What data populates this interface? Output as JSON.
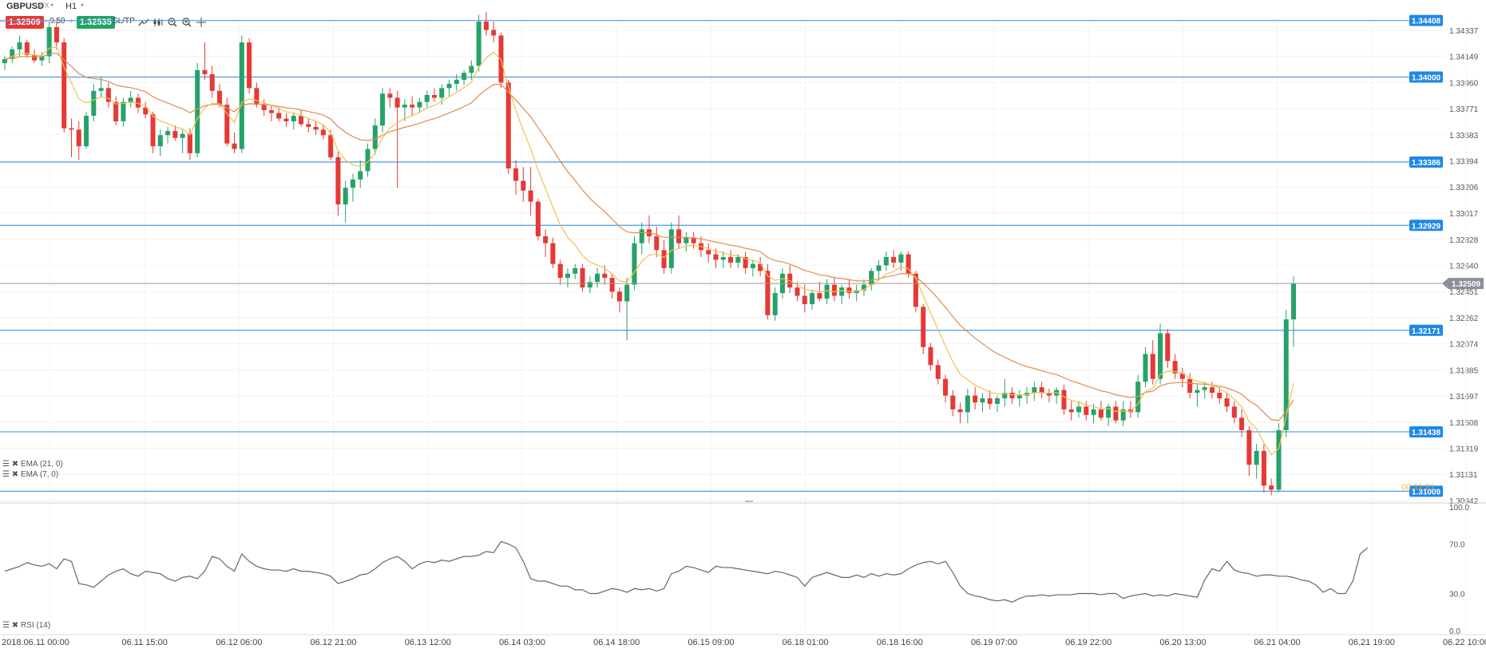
{
  "header": {
    "symbol": "GBPUSD",
    "market": "FX",
    "timeframe": "H1",
    "sell_price": "1.32509",
    "spread": "0.50",
    "buy_price": "1.32535",
    "sltp_label": "SL/TP",
    "colors": {
      "sell": "#e53935",
      "buy": "#26a269"
    }
  },
  "toolbar_icons": [
    "line-chart-icon",
    "candles-icon",
    "zoom-out-icon",
    "zoom-in-icon",
    "crosshair-icon"
  ],
  "price_axis": {
    "ticks": [
      "1.34337",
      "1.34149",
      "1.33960",
      "1.33771",
      "1.33583",
      "1.33394",
      "1.33206",
      "1.33017",
      "1.32828",
      "1.32640",
      "1.32451",
      "1.32262",
      "1.32074",
      "1.31885",
      "1.31697",
      "1.31508",
      "1.31319",
      "1.31131",
      "1.30942"
    ],
    "current_price": "1.32509",
    "overlap_label": "00:11:21"
  },
  "horizontal_lines": [
    "1.34408",
    "1.34000",
    "1.33386",
    "1.32929",
    "1.32171",
    "1.31438",
    "1.31009"
  ],
  "time_axis": [
    "2018.06.11 00:00",
    "06.11 15:00",
    "06.12 06:00",
    "06.12 21:00",
    "06.13 12:00",
    "06.14 03:00",
    "06.14 18:00",
    "06.15 09:00",
    "06.18 01:00",
    "06.18 16:00",
    "06.19 07:00",
    "06.19 22:00",
    "06.20 13:00",
    "06.21 04:00",
    "06.21 19:00",
    "06.22 10:00"
  ],
  "indicators": {
    "ema21_label": "EMA (21, 0)",
    "ema7_label": "EMA (7, 0)",
    "rsi_label": "RSI (14)",
    "ema21_color": "#e08a50",
    "ema7_color": "#f2c14e"
  },
  "rsi_axis": [
    "100.0",
    "70.0",
    "30.0",
    "0.0"
  ],
  "chart_data": {
    "type": "candlestick",
    "candles": [
      [
        1.341,
        1.3415,
        1.3405,
        1.3413
      ],
      [
        1.3413,
        1.3422,
        1.341,
        1.342
      ],
      [
        1.342,
        1.343,
        1.3415,
        1.3425
      ],
      [
        1.3425,
        1.3427,
        1.3414,
        1.3416
      ],
      [
        1.3416,
        1.342,
        1.341,
        1.3412
      ],
      [
        1.3412,
        1.3418,
        1.3408,
        1.3415
      ],
      [
        1.3415,
        1.344,
        1.341,
        1.3436
      ],
      [
        1.3436,
        1.344,
        1.342,
        1.3425
      ],
      [
        1.3425,
        1.3428,
        1.336,
        1.3363
      ],
      [
        1.3363,
        1.337,
        1.3342,
        1.3362
      ],
      [
        1.3362,
        1.3368,
        1.334,
        1.335
      ],
      [
        1.335,
        1.3375,
        1.3348,
        1.3372
      ],
      [
        1.3372,
        1.3395,
        1.3368,
        1.339
      ],
      [
        1.339,
        1.34,
        1.3385,
        1.3392
      ],
      [
        1.3392,
        1.3396,
        1.3378,
        1.3382
      ],
      [
        1.3382,
        1.3386,
        1.3365,
        1.3368
      ],
      [
        1.3368,
        1.3385,
        1.3364,
        1.3382
      ],
      [
        1.3382,
        1.339,
        1.3378,
        1.3385
      ],
      [
        1.3385,
        1.3388,
        1.3374,
        1.3378
      ],
      [
        1.3378,
        1.3382,
        1.337,
        1.3373
      ],
      [
        1.3373,
        1.3375,
        1.3345,
        1.335
      ],
      [
        1.335,
        1.3362,
        1.3343,
        1.3358
      ],
      [
        1.3358,
        1.3364,
        1.3352,
        1.3361
      ],
      [
        1.3361,
        1.3365,
        1.3354,
        1.3356
      ],
      [
        1.3356,
        1.3362,
        1.3345,
        1.3359
      ],
      [
        1.3359,
        1.3363,
        1.334,
        1.3345
      ],
      [
        1.3345,
        1.341,
        1.3342,
        1.3405
      ],
      [
        1.3405,
        1.3425,
        1.3398,
        1.3402
      ],
      [
        1.3402,
        1.3408,
        1.3385,
        1.339
      ],
      [
        1.339,
        1.3395,
        1.3378,
        1.338
      ],
      [
        1.338,
        1.3385,
        1.335,
        1.3352
      ],
      [
        1.3352,
        1.336,
        1.3345,
        1.3348
      ],
      [
        1.3348,
        1.343,
        1.3345,
        1.3425
      ],
      [
        1.3425,
        1.3428,
        1.3388,
        1.3392
      ],
      [
        1.3392,
        1.3396,
        1.3378,
        1.338
      ],
      [
        1.338,
        1.3384,
        1.3372,
        1.3376
      ],
      [
        1.3376,
        1.338,
        1.3368,
        1.3374
      ],
      [
        1.3374,
        1.3378,
        1.3368,
        1.337
      ],
      [
        1.337,
        1.3374,
        1.3364,
        1.3368
      ],
      [
        1.3368,
        1.3374,
        1.3362,
        1.3372
      ],
      [
        1.3372,
        1.3376,
        1.3364,
        1.3366
      ],
      [
        1.3366,
        1.337,
        1.336,
        1.3364
      ],
      [
        1.3364,
        1.3368,
        1.3358,
        1.3362
      ],
      [
        1.3362,
        1.3366,
        1.3355,
        1.3358
      ],
      [
        1.3358,
        1.3362,
        1.334,
        1.3342
      ],
      [
        1.3342,
        1.3346,
        1.33,
        1.3308
      ],
      [
        1.3308,
        1.3325,
        1.3295,
        1.332
      ],
      [
        1.332,
        1.333,
        1.331,
        1.3326
      ],
      [
        1.3326,
        1.334,
        1.332,
        1.3332
      ],
      [
        1.3332,
        1.3352,
        1.3328,
        1.3348
      ],
      [
        1.3348,
        1.337,
        1.3344,
        1.3365
      ],
      [
        1.3365,
        1.3392,
        1.336,
        1.3388
      ],
      [
        1.3388,
        1.3392,
        1.3378,
        1.3385
      ],
      [
        1.3385,
        1.339,
        1.332,
        1.3378
      ],
      [
        1.3378,
        1.3384,
        1.3368,
        1.338
      ],
      [
        1.338,
        1.3386,
        1.3372,
        1.3378
      ],
      [
        1.3378,
        1.3385,
        1.3374,
        1.3382
      ],
      [
        1.3382,
        1.339,
        1.3378,
        1.3387
      ],
      [
        1.3387,
        1.3392,
        1.3382,
        1.3385
      ],
      [
        1.3385,
        1.3395,
        1.338,
        1.3392
      ],
      [
        1.3392,
        1.3398,
        1.3386,
        1.3395
      ],
      [
        1.3395,
        1.3402,
        1.339,
        1.3398
      ],
      [
        1.3398,
        1.3405,
        1.3394,
        1.3403
      ],
      [
        1.3403,
        1.3412,
        1.3398,
        1.3408
      ],
      [
        1.3408,
        1.3445,
        1.3404,
        1.344
      ],
      [
        1.344,
        1.3447,
        1.343,
        1.3434
      ],
      [
        1.3434,
        1.344,
        1.3425,
        1.343
      ],
      [
        1.343,
        1.3432,
        1.3392,
        1.3396
      ],
      [
        1.3396,
        1.3398,
        1.333,
        1.3334
      ],
      [
        1.3334,
        1.334,
        1.3315,
        1.3325
      ],
      [
        1.3325,
        1.3335,
        1.331,
        1.3318
      ],
      [
        1.3318,
        1.3335,
        1.33,
        1.331
      ],
      [
        1.331,
        1.3312,
        1.3282,
        1.3285
      ],
      [
        1.3285,
        1.329,
        1.327,
        1.328
      ],
      [
        1.328,
        1.3284,
        1.3262,
        1.3265
      ],
      [
        1.3265,
        1.3268,
        1.325,
        1.3255
      ],
      [
        1.3255,
        1.3262,
        1.3248,
        1.3258
      ],
      [
        1.3258,
        1.3265,
        1.3254,
        1.3262
      ],
      [
        1.3262,
        1.3265,
        1.3245,
        1.3248
      ],
      [
        1.3248,
        1.3256,
        1.3244,
        1.3252
      ],
      [
        1.3252,
        1.3262,
        1.3248,
        1.3258
      ],
      [
        1.3258,
        1.3264,
        1.325,
        1.3255
      ],
      [
        1.3255,
        1.3258,
        1.324,
        1.3245
      ],
      [
        1.3245,
        1.3248,
        1.323,
        1.3238
      ],
      [
        1.3238,
        1.3255,
        1.321,
        1.325
      ],
      [
        1.325,
        1.3285,
        1.3246,
        1.328
      ],
      [
        1.328,
        1.3295,
        1.3272,
        1.329
      ],
      [
        1.329,
        1.33,
        1.328,
        1.3285
      ],
      [
        1.3285,
        1.3292,
        1.327,
        1.3275
      ],
      [
        1.3275,
        1.3282,
        1.3258,
        1.3262
      ],
      [
        1.3262,
        1.3295,
        1.3258,
        1.329
      ],
      [
        1.329,
        1.33,
        1.3276,
        1.328
      ],
      [
        1.328,
        1.3288,
        1.3274,
        1.3284
      ],
      [
        1.3284,
        1.3288,
        1.3276,
        1.328
      ],
      [
        1.328,
        1.3285,
        1.327,
        1.3275
      ],
      [
        1.3275,
        1.328,
        1.3266,
        1.3272
      ],
      [
        1.3272,
        1.3276,
        1.3262,
        1.3268
      ],
      [
        1.3268,
        1.3274,
        1.3262,
        1.327
      ],
      [
        1.327,
        1.3275,
        1.3262,
        1.3266
      ],
      [
        1.3266,
        1.3272,
        1.3262,
        1.327
      ],
      [
        1.327,
        1.3274,
        1.3258,
        1.3262
      ],
      [
        1.3262,
        1.3268,
        1.3256,
        1.3265
      ],
      [
        1.3265,
        1.327,
        1.3256,
        1.326
      ],
      [
        1.326,
        1.3265,
        1.3225,
        1.3228
      ],
      [
        1.3228,
        1.3248,
        1.3224,
        1.3244
      ],
      [
        1.3244,
        1.3262,
        1.324,
        1.3258
      ],
      [
        1.3258,
        1.3264,
        1.3244,
        1.3248
      ],
      [
        1.3248,
        1.3252,
        1.3238,
        1.3242
      ],
      [
        1.3242,
        1.325,
        1.323,
        1.3236
      ],
      [
        1.3236,
        1.3246,
        1.3232,
        1.3244
      ],
      [
        1.3244,
        1.3252,
        1.3238,
        1.324
      ],
      [
        1.324,
        1.3254,
        1.3236,
        1.325
      ],
      [
        1.325,
        1.3255,
        1.3238,
        1.3242
      ],
      [
        1.3242,
        1.325,
        1.3236,
        1.3248
      ],
      [
        1.3248,
        1.3254,
        1.324,
        1.3244
      ],
      [
        1.3244,
        1.325,
        1.3238,
        1.3246
      ],
      [
        1.3246,
        1.3254,
        1.3242,
        1.325
      ],
      [
        1.325,
        1.3262,
        1.3246,
        1.326
      ],
      [
        1.326,
        1.3268,
        1.3254,
        1.3264
      ],
      [
        1.3264,
        1.3274,
        1.326,
        1.327
      ],
      [
        1.327,
        1.3275,
        1.3262,
        1.3266
      ],
      [
        1.3266,
        1.3274,
        1.326,
        1.3272
      ],
      [
        1.3272,
        1.3274,
        1.3255,
        1.3258
      ],
      [
        1.3258,
        1.326,
        1.323,
        1.3234
      ],
      [
        1.3234,
        1.3236,
        1.32,
        1.3205
      ],
      [
        1.3205,
        1.3208,
        1.3188,
        1.3192
      ],
      [
        1.3192,
        1.3196,
        1.3178,
        1.3182
      ],
      [
        1.3182,
        1.3185,
        1.3165,
        1.317
      ],
      [
        1.317,
        1.3174,
        1.3155,
        1.316
      ],
      [
        1.316,
        1.3165,
        1.315,
        1.3158
      ],
      [
        1.3158,
        1.3175,
        1.315,
        1.317
      ],
      [
        1.317,
        1.3176,
        1.316,
        1.3165
      ],
      [
        1.3165,
        1.3172,
        1.3158,
        1.3168
      ],
      [
        1.3168,
        1.3174,
        1.316,
        1.3164
      ],
      [
        1.3164,
        1.317,
        1.3158,
        1.3168
      ],
      [
        1.3168,
        1.3182,
        1.3162,
        1.3172
      ],
      [
        1.3172,
        1.3176,
        1.3164,
        1.3168
      ],
      [
        1.3168,
        1.3174,
        1.3162,
        1.317
      ],
      [
        1.317,
        1.3176,
        1.3164,
        1.3172
      ],
      [
        1.3172,
        1.318,
        1.3166,
        1.3176
      ],
      [
        1.3176,
        1.318,
        1.3168,
        1.3172
      ],
      [
        1.3172,
        1.3175,
        1.3165,
        1.317
      ],
      [
        1.317,
        1.3176,
        1.3164,
        1.3174
      ],
      [
        1.3174,
        1.3178,
        1.3156,
        1.316
      ],
      [
        1.316,
        1.3166,
        1.3152,
        1.3158
      ],
      [
        1.3158,
        1.3166,
        1.3154,
        1.3162
      ],
      [
        1.3162,
        1.3166,
        1.3152,
        1.3156
      ],
      [
        1.3156,
        1.3164,
        1.315,
        1.316
      ],
      [
        1.316,
        1.3166,
        1.3152,
        1.3154
      ],
      [
        1.3154,
        1.3164,
        1.3148,
        1.3162
      ],
      [
        1.3162,
        1.3166,
        1.315,
        1.3152
      ],
      [
        1.3152,
        1.3166,
        1.3148,
        1.316
      ],
      [
        1.316,
        1.3166,
        1.3154,
        1.3158
      ],
      [
        1.3158,
        1.3185,
        1.3154,
        1.318
      ],
      [
        1.318,
        1.3205,
        1.3176,
        1.32
      ],
      [
        1.32,
        1.321,
        1.3178,
        1.3182
      ],
      [
        1.3182,
        1.3222,
        1.3178,
        1.3215
      ],
      [
        1.3215,
        1.3218,
        1.319,
        1.3195
      ],
      [
        1.3195,
        1.32,
        1.3182,
        1.3186
      ],
      [
        1.3186,
        1.319,
        1.3176,
        1.3182
      ],
      [
        1.3182,
        1.3186,
        1.3168,
        1.3172
      ],
      [
        1.3172,
        1.3178,
        1.3162,
        1.3174
      ],
      [
        1.3174,
        1.318,
        1.3168,
        1.3176
      ],
      [
        1.3176,
        1.318,
        1.3168,
        1.3172
      ],
      [
        1.3172,
        1.3176,
        1.3164,
        1.3168
      ],
      [
        1.3168,
        1.3172,
        1.3158,
        1.3162
      ],
      [
        1.3162,
        1.3166,
        1.315,
        1.3154
      ],
      [
        1.3154,
        1.316,
        1.314,
        1.3145
      ],
      [
        1.3145,
        1.3148,
        1.3112,
        1.312
      ],
      [
        1.312,
        1.3135,
        1.311,
        1.313
      ],
      [
        1.313,
        1.3135,
        1.31,
        1.3105
      ],
      [
        1.3105,
        1.311,
        1.3098,
        1.3102
      ],
      [
        1.3102,
        1.315,
        1.31,
        1.3145
      ],
      [
        1.3145,
        1.3232,
        1.314,
        1.3225
      ],
      [
        1.3225,
        1.3256,
        1.3205,
        1.3251
      ]
    ],
    "rsi": [
      48,
      50,
      52,
      55,
      53,
      52,
      54,
      50,
      58,
      56,
      38,
      37,
      35,
      40,
      45,
      48,
      50,
      46,
      44,
      48,
      47,
      46,
      42,
      40,
      43,
      44,
      42,
      48,
      60,
      58,
      52,
      48,
      62,
      56,
      52,
      50,
      49,
      49,
      48,
      50,
      48,
      48,
      47,
      46,
      44,
      38,
      40,
      42,
      45,
      46,
      50,
      55,
      58,
      60,
      56,
      50,
      54,
      56,
      55,
      57,
      56,
      58,
      60,
      60,
      61,
      64,
      63,
      72,
      70,
      67,
      56,
      42,
      40,
      40,
      38,
      36,
      36,
      33,
      33,
      30,
      30,
      32,
      34,
      33,
      31,
      34,
      33,
      34,
      32,
      34,
      46,
      48,
      52,
      51,
      49,
      47,
      52,
      51,
      51,
      50,
      49,
      48,
      47,
      46,
      48,
      47,
      45,
      43,
      36,
      43,
      45,
      47,
      45,
      43,
      43,
      45,
      43,
      46,
      44,
      46,
      45,
      46,
      50,
      53,
      55,
      56,
      54,
      56,
      47,
      36,
      30,
      28,
      27,
      25,
      24,
      25,
      23,
      26,
      28,
      28,
      29,
      28,
      29,
      29,
      29,
      30,
      30,
      30,
      29,
      30,
      30,
      26,
      28,
      29,
      30,
      28,
      29,
      28,
      30,
      29,
      28,
      27,
      41,
      50,
      48,
      56,
      49,
      47,
      46,
      44,
      45,
      45,
      44,
      44,
      43,
      41,
      40,
      37,
      31,
      34,
      30,
      30,
      40,
      62,
      67
    ]
  }
}
